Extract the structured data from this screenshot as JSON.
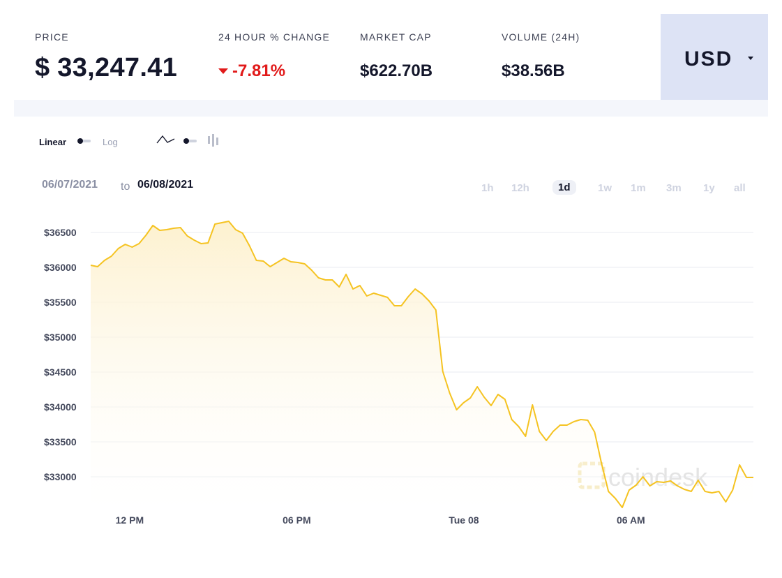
{
  "stats": {
    "price": {
      "label": "PRICE",
      "value": "$ 33,247.41"
    },
    "change": {
      "label": "24 HOUR % CHANGE",
      "value": "-7.81%",
      "direction": "down"
    },
    "market_cap": {
      "label": "MARKET CAP",
      "value": "$622.70B"
    },
    "volume": {
      "label": "VOLUME (24H)",
      "value": "$38.56B"
    }
  },
  "currency": {
    "label": "USD",
    "icon": "caret-down-icon"
  },
  "controls": {
    "scale_linear": "Linear",
    "scale_log": "Log",
    "scale_selected": "Linear",
    "chart_type_line_icon": "line-chart-icon",
    "chart_type_bar_icon": "ohlc-chart-icon",
    "chart_type_selected": "line"
  },
  "date_range": {
    "from": "06/07/2021",
    "to_word": "to",
    "to": "06/08/2021"
  },
  "periods": [
    "1h",
    "12h",
    "1d",
    "1w",
    "1m",
    "3m",
    "1y",
    "all"
  ],
  "active_period": "1d",
  "watermark": "coindesk",
  "colors": {
    "line": "#f5c321",
    "negative": "#e11a1a",
    "currency_bg": "#dde3f5",
    "text": "#14172b"
  },
  "chart_data": {
    "type": "area",
    "x_labels": [
      "12 PM",
      "06 PM",
      "Tue 08",
      "06 AM"
    ],
    "x_label_positions_hours": [
      1.4,
      7.4,
      13.4,
      19.4
    ],
    "x_range_hours": [
      0,
      23.8
    ],
    "ylim": [
      32500,
      36800
    ],
    "yticks": [
      33000,
      33500,
      34000,
      34500,
      35000,
      35500,
      36000,
      36500
    ],
    "ytick_labels": [
      "$33000",
      "$33500",
      "$34000",
      "$34500",
      "$35000",
      "$35500",
      "$36000",
      "$36500"
    ],
    "grid": true,
    "series": [
      {
        "values": [
          36030,
          36010,
          36100,
          36160,
          36270,
          36330,
          36290,
          36340,
          36460,
          36600,
          36530,
          36540,
          36560,
          36570,
          36450,
          36390,
          36340,
          36350,
          36620,
          36640,
          36660,
          36540,
          36490,
          36310,
          36100,
          36090,
          36010,
          36070,
          36130,
          36080,
          36070,
          36050,
          35960,
          35850,
          35820,
          35820,
          35720,
          35900,
          35690,
          35740,
          35590,
          35630,
          35600,
          35570,
          35450,
          35450,
          35580,
          35690,
          35620,
          35520,
          35390,
          34510,
          34200,
          33960,
          34060,
          34130,
          34290,
          34140,
          34020,
          34180,
          34110,
          33820,
          33720,
          33580,
          34030,
          33650,
          33520,
          33650,
          33740,
          33740,
          33790,
          33820,
          33810,
          33640,
          33190,
          32790,
          32690,
          32560,
          32810,
          32880,
          33000,
          32870,
          32930,
          32920,
          32940,
          32870,
          32820,
          32790,
          32950,
          32790,
          32770,
          32790,
          32640,
          32810,
          33170,
          32990,
          32990
        ]
      }
    ]
  }
}
